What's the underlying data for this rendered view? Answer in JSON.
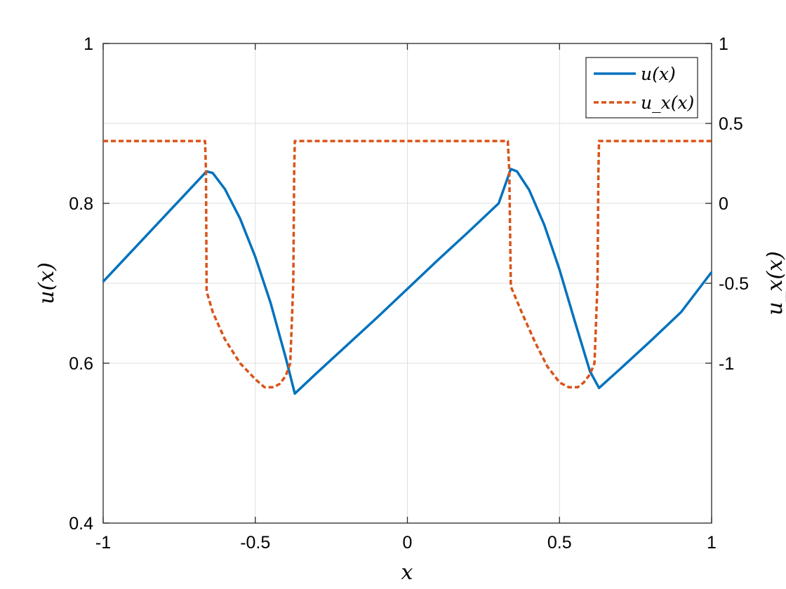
{
  "chart_data": {
    "type": "line",
    "xlabel": "x",
    "ylabel_left": "u(x)",
    "ylabel_right": "u_x(x)",
    "xlim": [
      -1,
      1
    ],
    "ylim_left": [
      0.4,
      1
    ],
    "ylim_right": [
      -2,
      1
    ],
    "x_ticks": [
      -1,
      -0.5,
      0,
      0.5,
      1
    ],
    "x_tick_labels": [
      "-1",
      "-0.5",
      "0",
      "0.5",
      "1"
    ],
    "y_left_ticks": [
      0.4,
      0.6,
      0.8,
      1
    ],
    "y_left_tick_labels": [
      "0.4",
      "0.6",
      "0.8",
      "1"
    ],
    "y_right_ticks": [
      -1,
      -0.5,
      0,
      0.5,
      1
    ],
    "y_right_tick_labels": [
      "-1",
      "-0.5",
      "0",
      "0.5",
      "1"
    ],
    "grid": true,
    "legend_position": "top-right",
    "series": [
      {
        "name": "u(x)",
        "axis": "left",
        "color": "#0072bd",
        "style": "solid",
        "x": [
          -1,
          -0.66,
          -0.64,
          -0.6,
          -0.55,
          -0.5,
          -0.45,
          -0.4,
          -0.37,
          -0.3,
          -0.2,
          -0.1,
          0,
          0.1,
          0.2,
          0.3,
          0.34,
          0.36,
          0.4,
          0.45,
          0.5,
          0.55,
          0.6,
          0.63,
          0.7,
          0.8,
          0.9,
          1
        ],
        "y": [
          0.702,
          0.84,
          0.838,
          0.818,
          0.781,
          0.733,
          0.676,
          0.607,
          0.562,
          0.587,
          0.622,
          0.657,
          0.693,
          0.729,
          0.764,
          0.8,
          0.843,
          0.84,
          0.817,
          0.773,
          0.717,
          0.653,
          0.59,
          0.569,
          0.593,
          0.628,
          0.664,
          0.714
        ]
      },
      {
        "name": "u_x(x)",
        "axis": "right",
        "color": "#d95319",
        "style": "dashed",
        "x": [
          -1,
          -0.665,
          -0.662,
          -0.66,
          -0.64,
          -0.6,
          -0.55,
          -0.5,
          -0.47,
          -0.44,
          -0.42,
          -0.4,
          -0.385,
          -0.375,
          -0.372,
          -0.37,
          -0.3,
          -0.2,
          -0.1,
          0,
          0.1,
          0.2,
          0.3,
          0.33,
          0.335,
          0.34,
          0.38,
          0.42,
          0.46,
          0.5,
          0.53,
          0.56,
          0.58,
          0.6,
          0.615,
          0.625,
          0.628,
          0.63,
          0.7,
          0.8,
          0.9,
          1
        ],
        "y": [
          0.39,
          0.39,
          0.2,
          -0.55,
          -0.68,
          -0.85,
          -1.0,
          -1.1,
          -1.15,
          -1.15,
          -1.13,
          -1.08,
          -1.0,
          -0.5,
          0.2,
          0.39,
          0.39,
          0.39,
          0.39,
          0.39,
          0.39,
          0.39,
          0.39,
          0.39,
          0.2,
          -0.52,
          -0.7,
          -0.87,
          -1.02,
          -1.12,
          -1.15,
          -1.15,
          -1.12,
          -1.07,
          -1.0,
          -0.5,
          0.2,
          0.39,
          0.39,
          0.39,
          0.39,
          0.39
        ]
      }
    ]
  },
  "legend": {
    "items": [
      {
        "label": "u(x)"
      },
      {
        "label": "u_x(x)"
      }
    ]
  }
}
